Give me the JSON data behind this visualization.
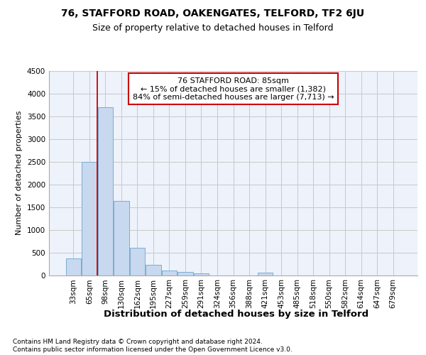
{
  "title1": "76, STAFFORD ROAD, OAKENGATES, TELFORD, TF2 6JU",
  "title2": "Size of property relative to detached houses in Telford",
  "xlabel": "Distribution of detached houses by size in Telford",
  "ylabel": "Number of detached properties",
  "categories": [
    "33sqm",
    "65sqm",
    "98sqm",
    "130sqm",
    "162sqm",
    "195sqm",
    "227sqm",
    "259sqm",
    "291sqm",
    "324sqm",
    "356sqm",
    "388sqm",
    "421sqm",
    "453sqm",
    "485sqm",
    "518sqm",
    "550sqm",
    "582sqm",
    "614sqm",
    "647sqm",
    "679sqm"
  ],
  "values": [
    370,
    2500,
    3700,
    1630,
    600,
    230,
    105,
    65,
    45,
    0,
    0,
    0,
    60,
    0,
    0,
    0,
    0,
    0,
    0,
    0,
    0
  ],
  "bar_color": "#c8d8ee",
  "bar_edge_color": "#7aadd4",
  "grid_color": "#c8c8c8",
  "vline_color": "#cc0000",
  "annotation_text": "76 STAFFORD ROAD: 85sqm\n← 15% of detached houses are smaller (1,382)\n84% of semi-detached houses are larger (7,713) →",
  "annotation_box_color": "white",
  "annotation_box_edge": "#cc0000",
  "ylim": [
    0,
    4500
  ],
  "yticks": [
    0,
    500,
    1000,
    1500,
    2000,
    2500,
    3000,
    3500,
    4000,
    4500
  ],
  "footer1": "Contains HM Land Registry data © Crown copyright and database right 2024.",
  "footer2": "Contains public sector information licensed under the Open Government Licence v3.0.",
  "bg_color": "#edf2fb",
  "title1_fontsize": 10,
  "title2_fontsize": 9,
  "ylabel_fontsize": 8,
  "xlabel_fontsize": 9.5,
  "tick_fontsize": 7.5,
  "footer_fontsize": 6.5,
  "annotation_fontsize": 8
}
